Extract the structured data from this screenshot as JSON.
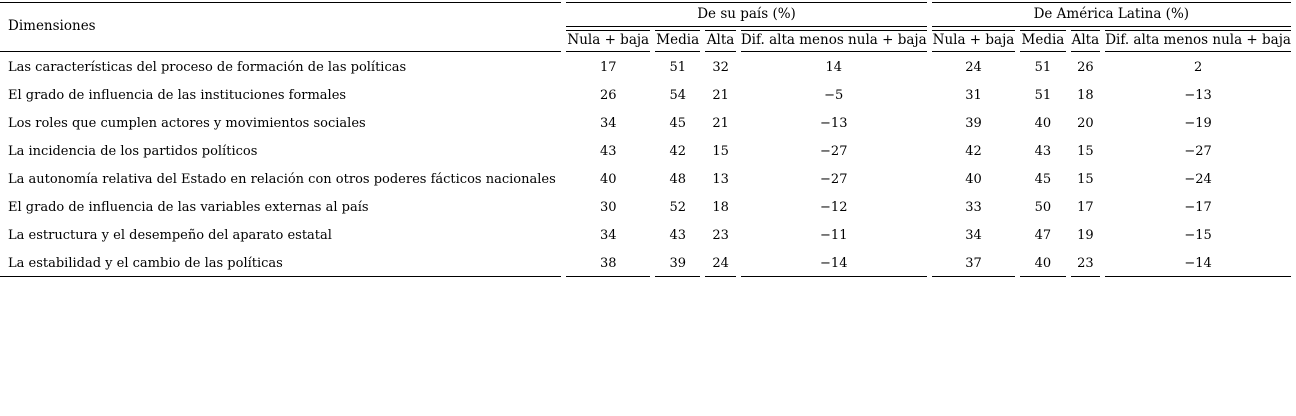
{
  "table": {
    "col_dimensiones": "Dimensiones",
    "groups": [
      {
        "label": "De su país (%)",
        "subheaders": [
          "Nula + baja",
          "Media",
          "Alta",
          "Dif. alta menos nula + baja"
        ]
      },
      {
        "label": "De América Latina (%)",
        "subheaders": [
          "Nula + baja",
          "Media",
          "Alta",
          "Dif. alta menos nula + baja"
        ]
      }
    ],
    "rows": [
      {
        "label": "Las características del proceso de formación de las políticas",
        "values": [
          17,
          51,
          32,
          14,
          24,
          51,
          26,
          2
        ]
      },
      {
        "label": "El grado de influencia de las instituciones formales",
        "values": [
          26,
          54,
          21,
          -5,
          31,
          51,
          18,
          -13
        ]
      },
      {
        "label": "Los roles que cumplen actores y movimientos sociales",
        "values": [
          34,
          45,
          21,
          -13,
          39,
          40,
          20,
          -19
        ]
      },
      {
        "label": "La incidencia de los partidos políticos",
        "values": [
          43,
          42,
          15,
          -27,
          42,
          43,
          15,
          -27
        ]
      },
      {
        "label": "La autonomía relativa del Estado en relación con otros poderes fácticos nacionales",
        "values": [
          40,
          48,
          13,
          -27,
          40,
          45,
          15,
          -24
        ]
      },
      {
        "label": "El grado de influencia de las variables externas al país",
        "values": [
          30,
          52,
          18,
          -12,
          33,
          50,
          17,
          -17
        ]
      },
      {
        "label": "La estructura y el desempeño del aparato estatal",
        "values": [
          34,
          43,
          23,
          -11,
          34,
          47,
          19,
          -15
        ]
      },
      {
        "label": "La estabilidad y el cambio de las políticas",
        "values": [
          38,
          39,
          24,
          -14,
          37,
          40,
          23,
          -14
        ]
      }
    ]
  },
  "colors": {
    "text": "#000000",
    "rule": "#000000",
    "background": "#ffffff"
  }
}
